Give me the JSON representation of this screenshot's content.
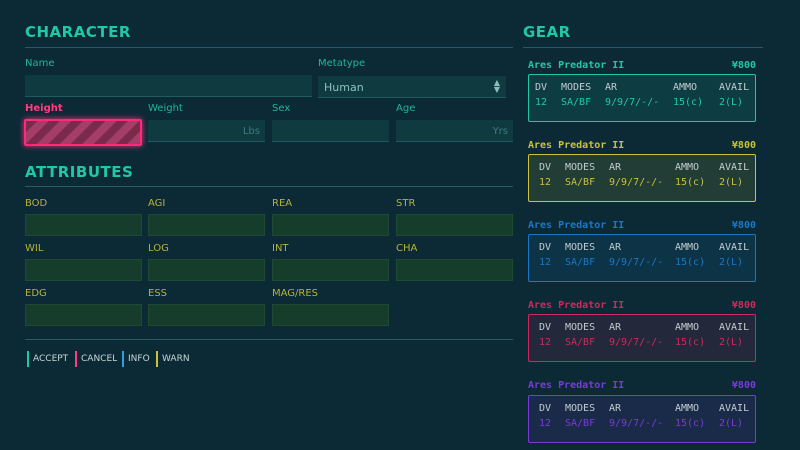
{
  "character": {
    "title": "CHARACTER",
    "name_label": "Name",
    "metatype_label": "Metatype",
    "metatype_value": "Human",
    "height_label": "Height",
    "weight_label": "Weight",
    "weight_unit": "Lbs",
    "sex_label": "Sex",
    "age_label": "Age",
    "age_unit": "Yrs"
  },
  "attributes": {
    "title": "ATTRIBUTES",
    "labels": [
      "BOD",
      "AGI",
      "REA",
      "STR",
      "WIL",
      "LOG",
      "INT",
      "CHA",
      "EDG",
      "ESS",
      "MAG/RES"
    ]
  },
  "buttons": [
    {
      "label": "ACCEPT",
      "color": "#1fc9a8"
    },
    {
      "label": "CANCEL",
      "color": "#ff3d7f"
    },
    {
      "label": "INFO",
      "color": "#2aa0e0"
    },
    {
      "label": "WARN",
      "color": "#c9c23a"
    }
  ],
  "gear": {
    "title": "GEAR",
    "headers": [
      "DV",
      "MODES",
      "AR",
      "AMMO",
      "AVAIL"
    ],
    "items": [
      {
        "name": "Ares Predator II",
        "price": "¥800",
        "dv": "12",
        "modes": "SA/BF",
        "ar": "9/9/7/-/-",
        "ammo": "15(c)",
        "avail": "2(L)",
        "color": "#1fc9a8"
      },
      {
        "name": "Ares Predator II",
        "price": "¥800",
        "dv": "12",
        "modes": "SA/BF",
        "ar": "9/9/7/-/-",
        "ammo": "15(c)",
        "avail": "2(L)",
        "color": "#c9c23a"
      },
      {
        "name": "Ares Predator II",
        "price": "¥800",
        "dv": "12",
        "modes": "SA/BF",
        "ar": "9/9/7/-/-",
        "ammo": "15(c)",
        "avail": "2(L)",
        "color": "#1a78c8"
      },
      {
        "name": "Ares Predator II",
        "price": "¥800",
        "dv": "12",
        "modes": "SA/BF",
        "ar": "9/9/7/-/-",
        "ammo": "15(c)",
        "avail": "2(L)",
        "color": "#d0285e"
      },
      {
        "name": "Ares Predator II",
        "price": "¥800",
        "dv": "12",
        "modes": "SA/BF",
        "ar": "9/9/7/-/-",
        "ammo": "15(c)",
        "avail": "2(L)",
        "color": "#7a3ad8"
      }
    ]
  }
}
